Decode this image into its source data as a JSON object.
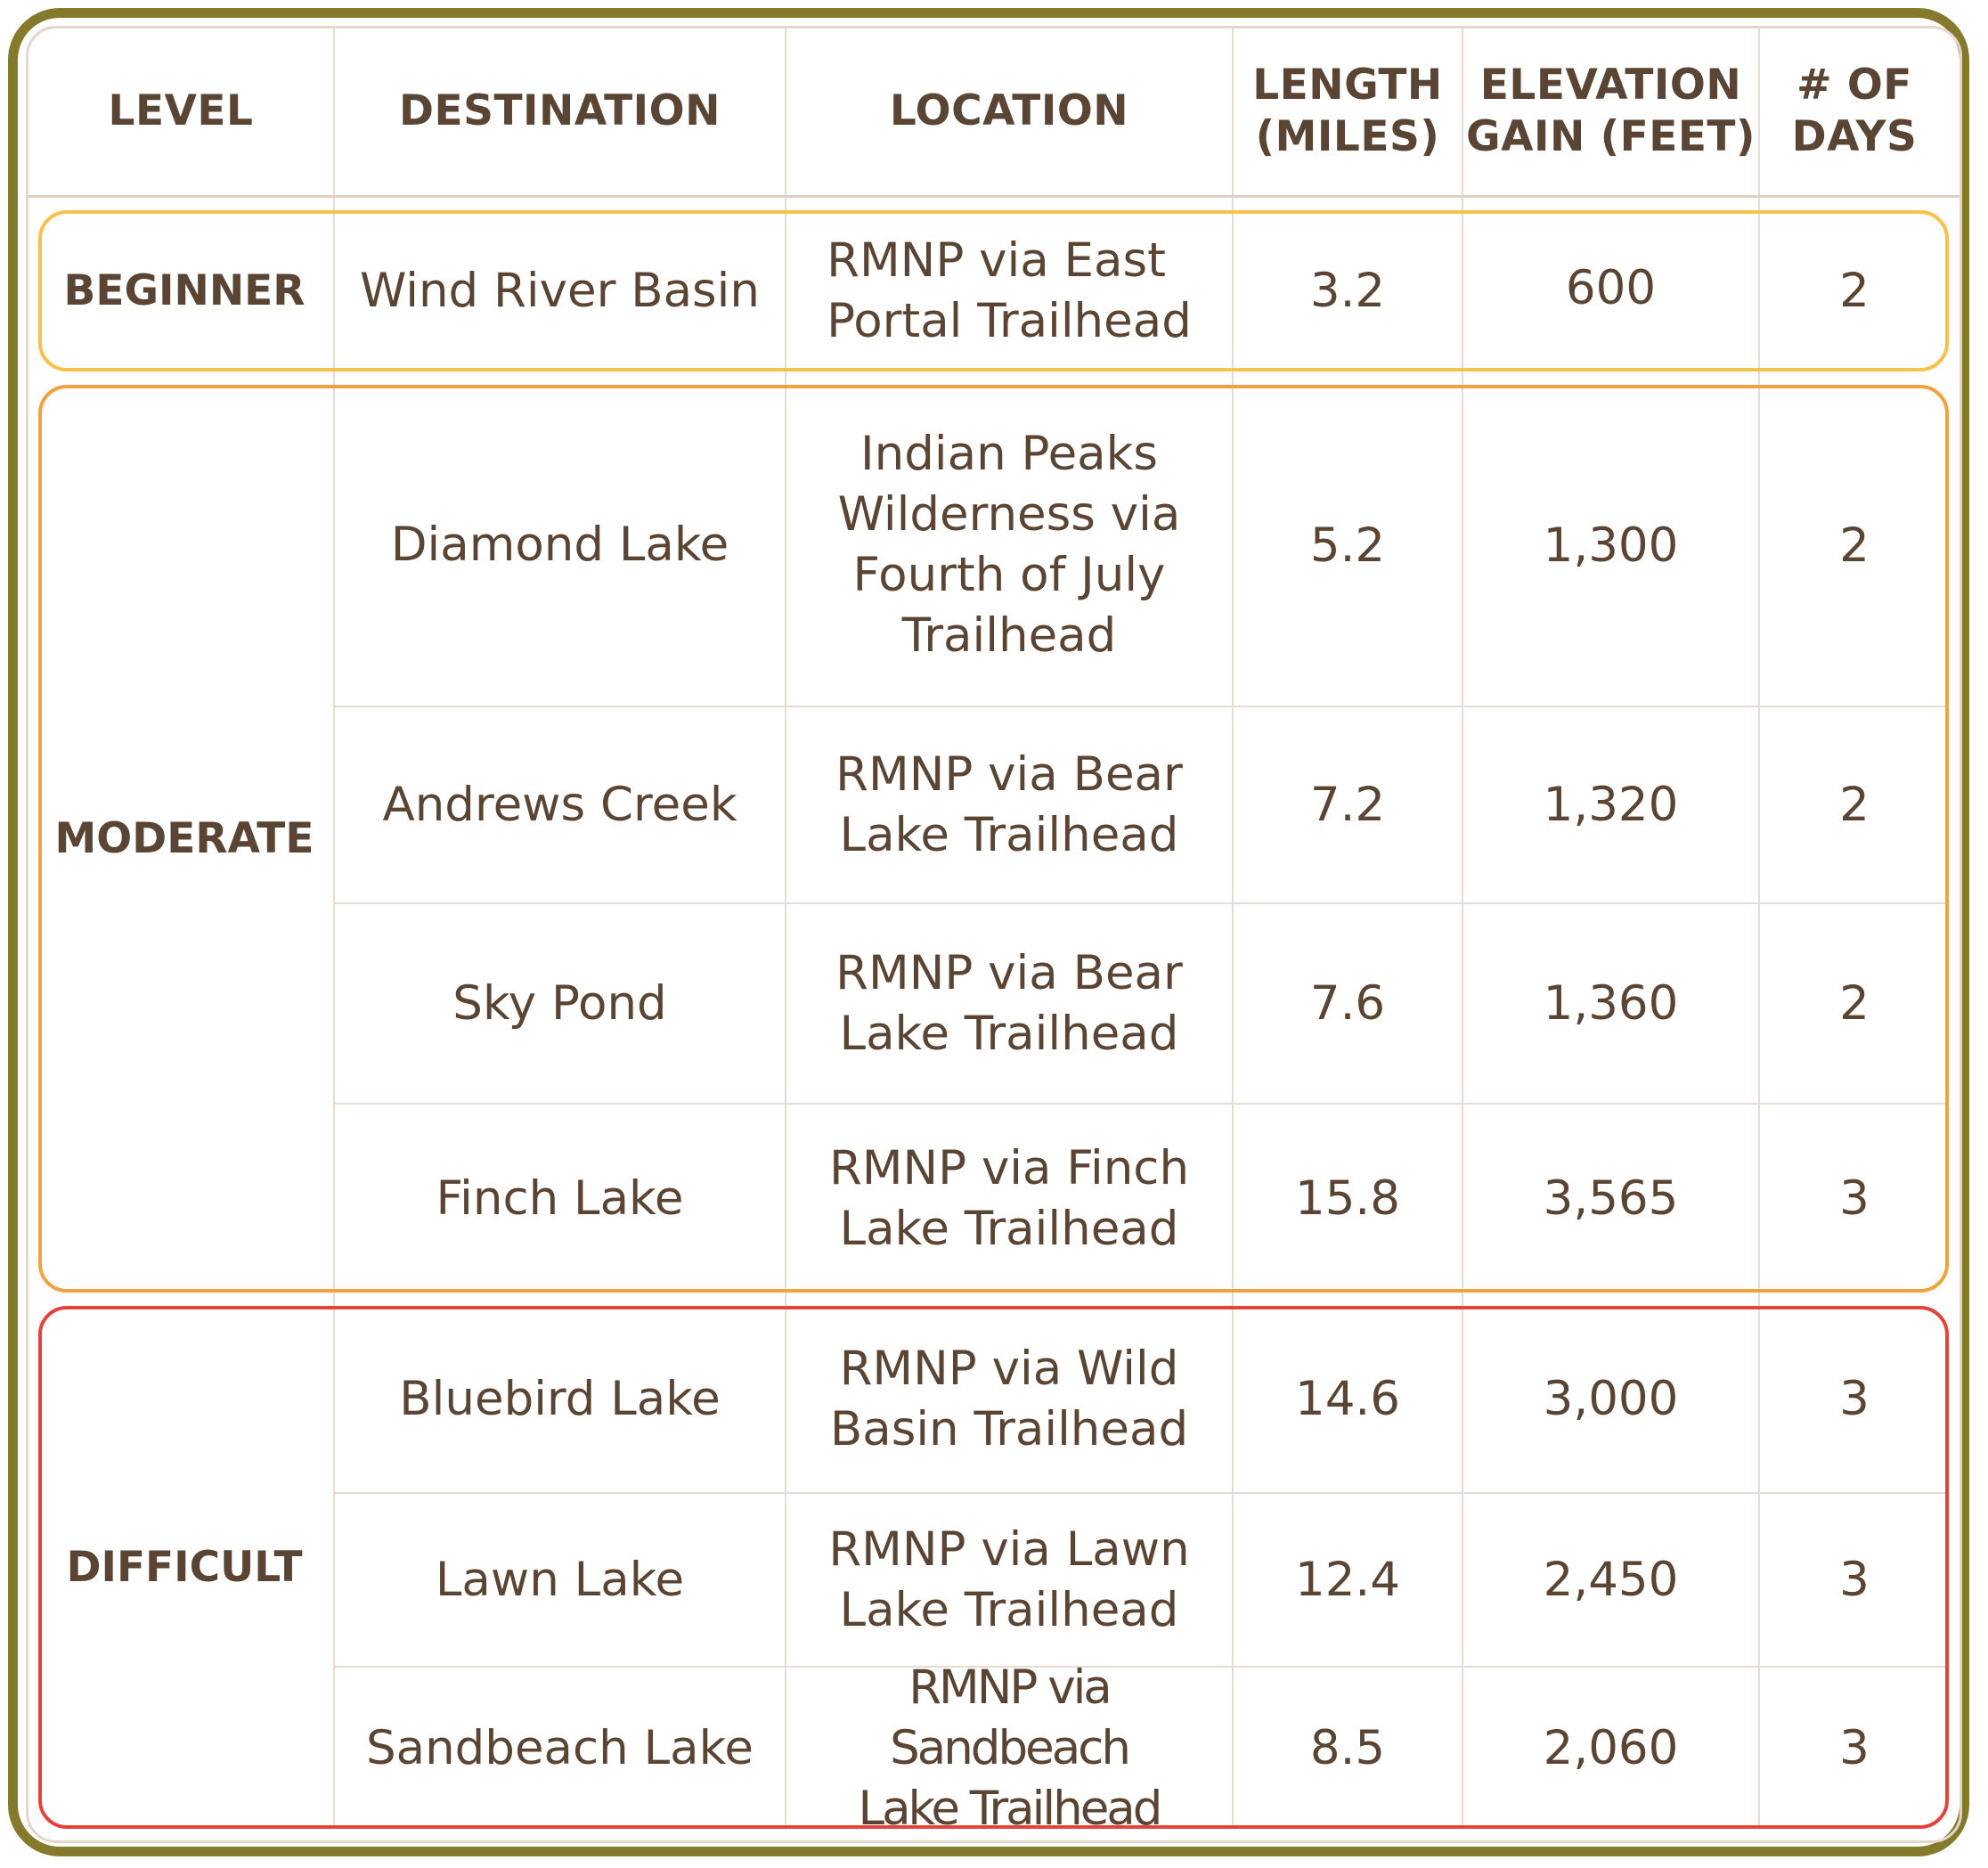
{
  "colors": {
    "frame": "#857a2c",
    "text": "#5a4433",
    "beginner": "#f6c14c",
    "moderate": "#f0a33d",
    "difficult": "#e5423a"
  },
  "headers": {
    "level": "LEVEL",
    "destination": "DESTINATION",
    "location": "LOCATION",
    "length": "LENGTH\n(MILES)",
    "elevation": "ELEVATION\nGAIN (FEET)",
    "days": "# OF\nDAYS"
  },
  "levels": {
    "beginner": "BEGINNER",
    "moderate": "MODERATE",
    "difficult": "DIFFICULT"
  },
  "rows": [
    {
      "destination": "Wind River Basin",
      "location": "RMNP via East\nPortal Trailhead",
      "length": "3.2",
      "elevation": "600",
      "days": "2"
    },
    {
      "destination": "Diamond Lake",
      "location": "Indian Peaks\nWilderness via\nFourth of July\nTrailhead",
      "length": "5.2",
      "elevation": "1,300",
      "days": "2"
    },
    {
      "destination": "Andrews Creek",
      "location": "RMNP via Bear\nLake Trailhead",
      "length": "7.2",
      "elevation": "1,320",
      "days": "2"
    },
    {
      "destination": "Sky Pond",
      "location": "RMNP via Bear\nLake Trailhead",
      "length": "7.6",
      "elevation": "1,360",
      "days": "2"
    },
    {
      "destination": "Finch Lake",
      "location": "RMNP via Finch\nLake Trailhead",
      "length": "15.8",
      "elevation": "3,565",
      "days": "3"
    },
    {
      "destination": "Bluebird Lake",
      "location": "RMNP via Wild\nBasin Trailhead",
      "length": "14.6",
      "elevation": "3,000",
      "days": "3"
    },
    {
      "destination": "Lawn Lake",
      "location": "RMNP via Lawn\nLake Trailhead",
      "length": "12.4",
      "elevation": "2,450",
      "days": "3"
    },
    {
      "destination": "Sandbeach Lake",
      "location": "RMNP via Sandbeach\nLake Trailhead",
      "length": "8.5",
      "elevation": "2,060",
      "days": "3"
    }
  ]
}
